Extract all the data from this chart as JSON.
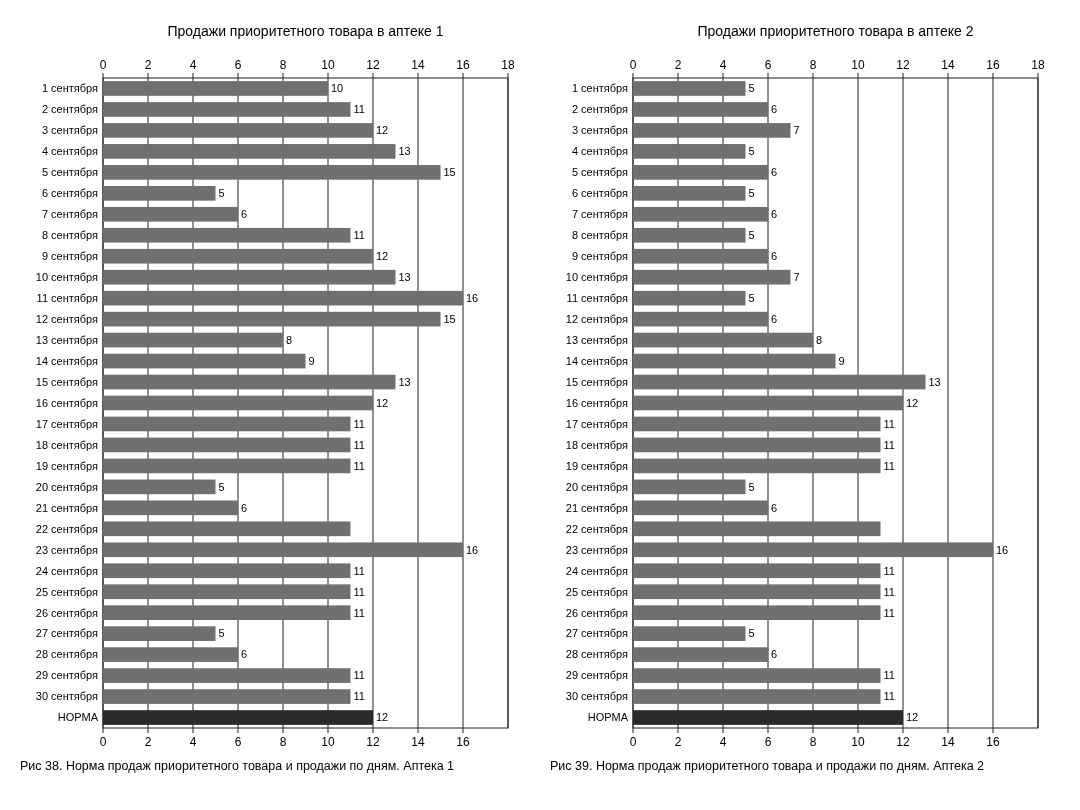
{
  "chart_data": [
    {
      "type": "bar",
      "orientation": "horizontal",
      "title": "Продажи приоритетного товара в аптеке 1",
      "annotations": [
        "Рис 38. Норма продаж приоритетного товара и продажи по дням. Аптека 1"
      ],
      "categories": [
        "1 сентября",
        "2 сентября",
        "3 сентября",
        "4 сентября",
        "5 сентября",
        "6 сентября",
        "7 сентября",
        "8 сентября",
        "9 сентября",
        "10 сентября",
        "11 сентября",
        "12 сентября",
        "13 сентября",
        "14 сентября",
        "15 сентября",
        "16 сентября",
        "17 сентября",
        "18 сентября",
        "19 сентября",
        "20 сентября",
        "21 сентября",
        "22 сентября",
        "23 сентября",
        "24 сентября",
        "25 сентября",
        "26 сентября",
        "27 сентября",
        "28 сентября",
        "29 сентября",
        "30 сентября",
        "НОРМА"
      ],
      "values": [
        10,
        11,
        12,
        13,
        15,
        5,
        6,
        11,
        12,
        13,
        16,
        15,
        8,
        9,
        13,
        12,
        11,
        11,
        11,
        5,
        6,
        11,
        16,
        11,
        11,
        11,
        5,
        6,
        11,
        11,
        12
      ],
      "value_labels": [
        "10",
        "11",
        "12",
        "13",
        "15",
        "5",
        "6",
        "11",
        "12",
        "13",
        "16",
        "15",
        "8",
        "9",
        "13",
        "12",
        "11",
        "11",
        "11",
        "5",
        "6",
        null,
        "16",
        "11",
        "11",
        "11",
        "5",
        "6",
        "11",
        "11",
        "12"
      ],
      "colors": [
        "#707070",
        "#707070",
        "#707070",
        "#707070",
        "#707070",
        "#707070",
        "#707070",
        "#707070",
        "#707070",
        "#707070",
        "#707070",
        "#707070",
        "#707070",
        "#707070",
        "#707070",
        "#707070",
        "#707070",
        "#707070",
        "#707070",
        "#707070",
        "#707070",
        "#707070",
        "#707070",
        "#707070",
        "#707070",
        "#707070",
        "#707070",
        "#707070",
        "#707070",
        "#707070",
        "#2a2a2a"
      ],
      "xlim": [
        0,
        18
      ],
      "xticks": [
        0,
        2,
        4,
        6,
        8,
        10,
        12,
        14,
        16
      ],
      "x2lim": [
        0,
        18
      ],
      "x2ticks": [
        0,
        2,
        4,
        6,
        8,
        10,
        12,
        14,
        16,
        18
      ],
      "grid": "x"
    },
    {
      "type": "bar",
      "orientation": "horizontal",
      "title": "Продажи приоритетного товара в аптеке 2",
      "annotations": [
        "Рис 39. Норма продаж приоритетного товара и продажи по дням. Аптека 2"
      ],
      "categories": [
        "1 сентября",
        "2 сентября",
        "3 сентября",
        "4 сентября",
        "5 сентября",
        "6 сентября",
        "7 сентября",
        "8 сентября",
        "9 сентября",
        "10 сентября",
        "11 сентября",
        "12 сентября",
        "13 сентября",
        "14 сентября",
        "15 сентября",
        "16 сентября",
        "17 сентября",
        "18 сентября",
        "19 сентября",
        "20 сентября",
        "21 сентября",
        "22 сентября",
        "23 сентября",
        "24 сентября",
        "25 сентября",
        "26 сентября",
        "27 сентября",
        "28 сентября",
        "29 сентября",
        "30 сентября",
        "НОРМА"
      ],
      "values": [
        5,
        6,
        7,
        5,
        6,
        5,
        6,
        5,
        6,
        7,
        5,
        6,
        8,
        9,
        13,
        12,
        11,
        11,
        11,
        5,
        6,
        11,
        16,
        11,
        11,
        11,
        5,
        6,
        11,
        11,
        12
      ],
      "value_labels": [
        "5",
        "6",
        "7",
        "5",
        "6",
        "5",
        "6",
        "5",
        "6",
        "7",
        "5",
        "6",
        "8",
        "9",
        "13",
        "12",
        "11",
        "11",
        "11",
        "5",
        "6",
        null,
        "16",
        "11",
        "11",
        "11",
        "5",
        "6",
        "11",
        "11",
        "12"
      ],
      "colors": [
        "#707070",
        "#707070",
        "#707070",
        "#707070",
        "#707070",
        "#707070",
        "#707070",
        "#707070",
        "#707070",
        "#707070",
        "#707070",
        "#707070",
        "#707070",
        "#707070",
        "#707070",
        "#707070",
        "#707070",
        "#707070",
        "#707070",
        "#707070",
        "#707070",
        "#707070",
        "#707070",
        "#707070",
        "#707070",
        "#707070",
        "#707070",
        "#707070",
        "#707070",
        "#707070",
        "#2a2a2a"
      ],
      "xlim": [
        0,
        18
      ],
      "xticks": [
        0,
        2,
        4,
        6,
        8,
        10,
        12,
        14,
        16
      ],
      "x2lim": [
        0,
        18
      ],
      "x2ticks": [
        0,
        2,
        4,
        6,
        8,
        10,
        12,
        14,
        16,
        18
      ],
      "grid": "x"
    }
  ]
}
